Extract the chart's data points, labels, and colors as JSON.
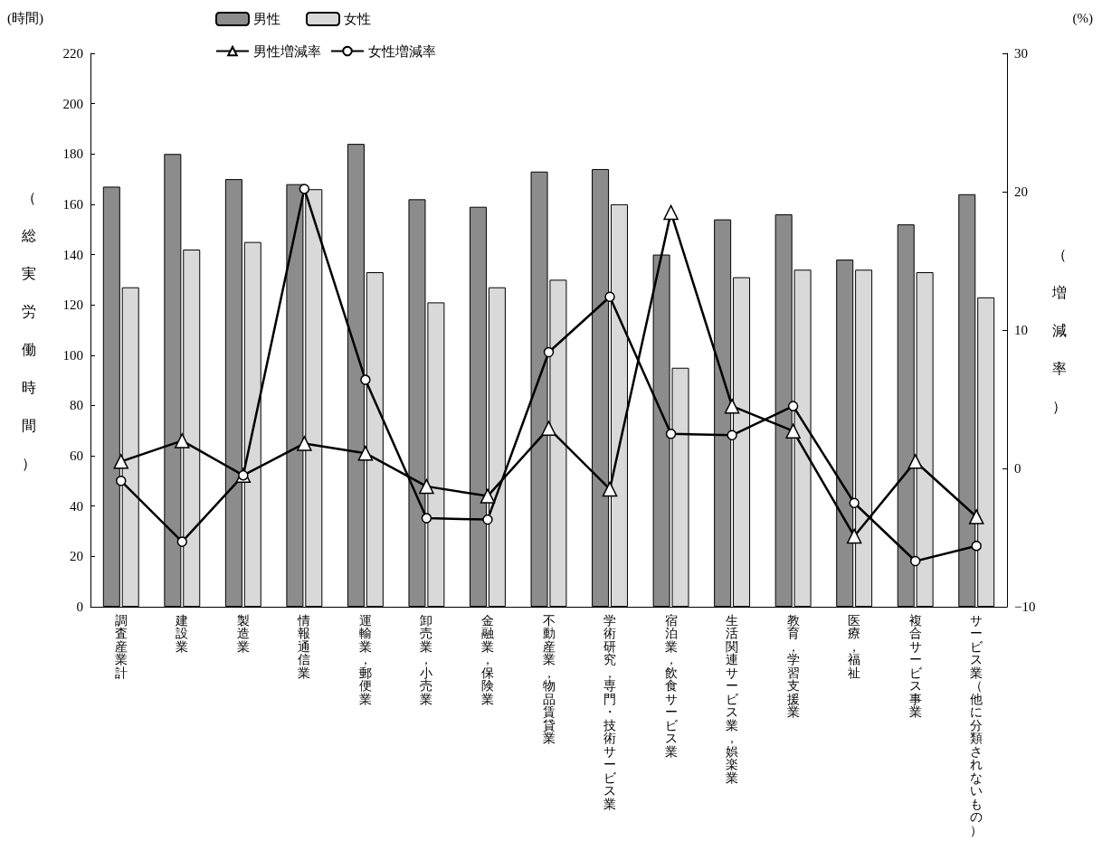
{
  "chart_data": {
    "type": "bar",
    "ylabel": "（総実労働時間）",
    "y2label": "（増減率）",
    "annotations": [
      "(時間)",
      "(%)"
    ],
    "categories": [
      "調査産業計",
      "建設業",
      "製造業",
      "情報通信業",
      "運輸業，郵便業",
      "卸売業，小売業",
      "金融業，保険業",
      "不動産業，物品賃貸業",
      "学術研究，専門・技術サービス業",
      "宿泊業，飲食サービス業",
      "生活関連サービス業，娯楽業",
      "教育，学習支援業",
      "医療，福祉",
      "複合サービス事業",
      "サービス業（他に分類されないもの）"
    ],
    "series": [
      {
        "name": "男性",
        "color": "#8c8c8c",
        "values": [
          167,
          180,
          170,
          168,
          184,
          162,
          159,
          173,
          174,
          140,
          154,
          156,
          138,
          152,
          164
        ]
      },
      {
        "name": "女性",
        "color": "#d9d9d9",
        "values": [
          127,
          142,
          145,
          166,
          133,
          121,
          127,
          130,
          160,
          95,
          131,
          134,
          134,
          133,
          123
        ]
      },
      {
        "name": "男性増減率",
        "type": "line",
        "axis": "y2",
        "color": "#000000",
        "marker": "triangle",
        "values": [
          0.5,
          2.0,
          -0.5,
          1.8,
          1.1,
          -1.3,
          -2.0,
          2.9,
          -1.5,
          18.5,
          4.5,
          2.7,
          -4.9,
          0.5,
          -3.5
        ]
      },
      {
        "name": "女性増減率",
        "type": "line",
        "axis": "y2",
        "color": "#000000",
        "marker": "circle",
        "values": [
          -0.9,
          -5.3,
          -0.5,
          20.2,
          6.4,
          -3.6,
          -3.7,
          8.4,
          12.4,
          2.5,
          2.4,
          4.5,
          -2.5,
          -6.7,
          -5.6
        ]
      }
    ],
    "ylim": [
      0,
      220
    ],
    "yticks": [
      0,
      20,
      40,
      60,
      80,
      100,
      120,
      140,
      160,
      180,
      200,
      220
    ],
    "y2lim": [
      -10,
      30
    ],
    "y2ticks": [
      -10,
      0,
      10,
      20,
      30
    ],
    "grid": false,
    "legend": "top",
    "line_style": "solid"
  }
}
